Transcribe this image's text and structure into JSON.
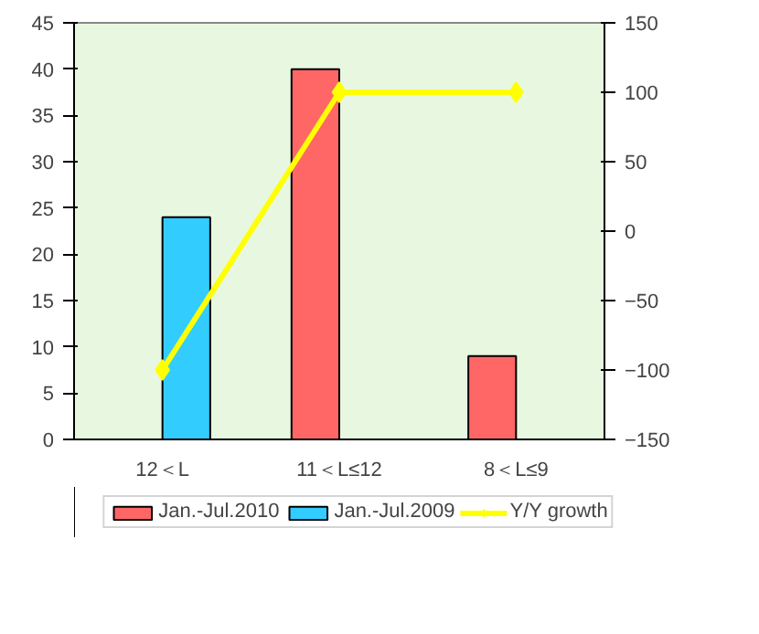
{
  "chart_data": {
    "type": "bar",
    "categories": [
      "12＜L",
      "11＜L≤12",
      "8＜L≤9"
    ],
    "series": [
      {
        "name": "Jan.-Jul.2010",
        "color": "#ff6666",
        "values": [
          null,
          40,
          9
        ]
      },
      {
        "name": "Jan.-Jul.2009",
        "color": "#33ccff",
        "values": [
          24,
          null,
          null
        ]
      },
      {
        "name": "Y/Y growth",
        "type": "line",
        "axis": "y2",
        "color": "#ffff00",
        "values": [
          -100,
          100,
          100
        ]
      }
    ],
    "ylim": [
      0,
      45
    ],
    "yticks": [
      0,
      5,
      10,
      15,
      20,
      25,
      30,
      35,
      40,
      45
    ],
    "y2lim": [
      -150,
      150
    ],
    "y2ticks": [
      -150,
      -100,
      -50,
      0,
      50,
      100,
      150
    ],
    "marker": "diamond",
    "legend": "bottom",
    "grid": false
  }
}
